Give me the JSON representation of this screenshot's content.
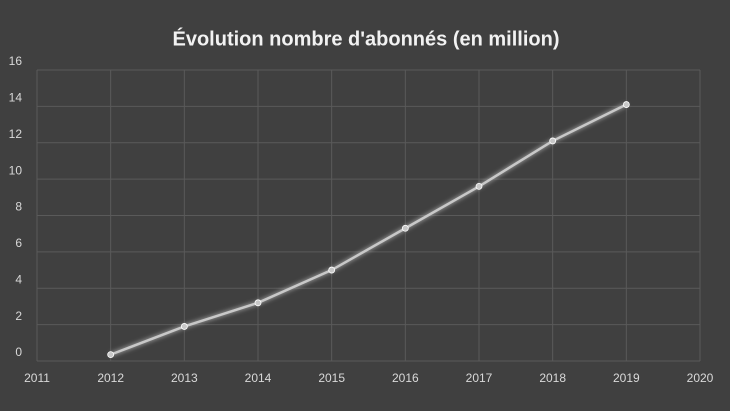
{
  "chart_data": {
    "type": "line",
    "title": "Évolution nombre d'abonnés (en million)",
    "x": [
      2012,
      2013,
      2014,
      2015,
      2016,
      2017,
      2018,
      2019
    ],
    "series": [
      {
        "color": "#c8c8c8",
        "values": [
          0.35,
          1.9,
          3.2,
          5.0,
          7.3,
          9.6,
          12.1,
          14.1
        ]
      }
    ],
    "xlim": [
      2011,
      2020
    ],
    "xticks": [
      2011,
      2012,
      2013,
      2014,
      2015,
      2016,
      2017,
      2018,
      2019,
      2020
    ],
    "ylim": [
      0,
      16
    ],
    "yticks": [
      0,
      2,
      4,
      6,
      8,
      10,
      12,
      14,
      16
    ],
    "grid": true
  }
}
